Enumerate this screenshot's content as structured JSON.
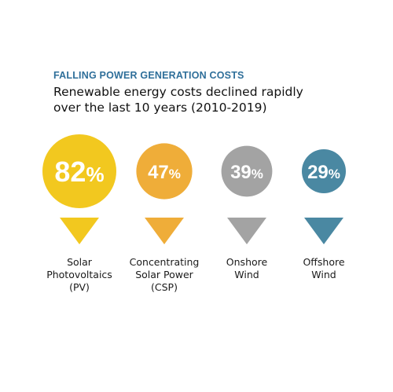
{
  "header": {
    "kicker": "FALLING POWER GENERATION COSTS",
    "title": "Renewable energy costs declined rapidly over the last 10 years (2010-2019)"
  },
  "chart_data": {
    "type": "bar",
    "title": "Renewable energy costs declined rapidly over the last 10 years (2010-2019)",
    "categories": [
      "Solar Photovoltaics (PV)",
      "Concentrating Solar Power (CSP)",
      "Onshore Wind",
      "Offshore Wind"
    ],
    "values": [
      82,
      47,
      39,
      29
    ],
    "value_unit": "%",
    "items": [
      {
        "value": 82,
        "display": "82",
        "unit": "%",
        "label_lines": [
          "Solar",
          "Photovoltaics",
          "(PV)"
        ],
        "color": "#f2c81f"
      },
      {
        "value": 47,
        "display": "47",
        "unit": "%",
        "label_lines": [
          "Concentrating",
          "Solar Power",
          "(CSP)"
        ],
        "color": "#efad39"
      },
      {
        "value": 39,
        "display": "39",
        "unit": "%",
        "label_lines": [
          "Onshore",
          "Wind"
        ],
        "color": "#a3a3a3"
      },
      {
        "value": 29,
        "display": "29",
        "unit": "%",
        "label_lines": [
          "Offshore",
          "Wind"
        ],
        "color": "#4a88a2"
      }
    ]
  }
}
